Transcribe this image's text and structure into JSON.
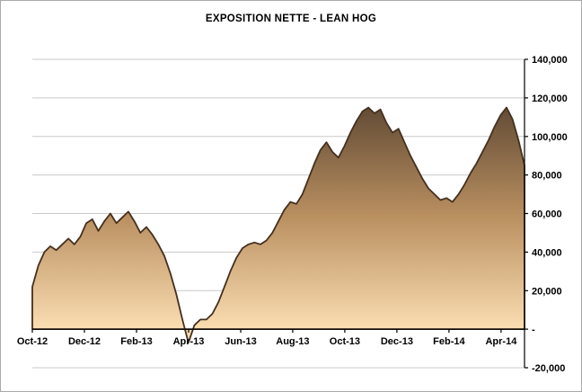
{
  "chart_data": {
    "type": "area",
    "title": "EXPOSITION NETTE - LEAN HOG",
    "series_name": "Exposition nette",
    "x_labels": [
      "Oct-12",
      "Dec-12",
      "Feb-13",
      "Apr-13",
      "Jun-13",
      "Aug-13",
      "Oct-13",
      "Dec-13",
      "Feb-14",
      "Apr-14"
    ],
    "label_step_months": 2,
    "months_total": 18.9,
    "ylim": [
      -20000,
      140000
    ],
    "y_ticks": [
      140000,
      120000,
      100000,
      80000,
      60000,
      40000,
      20000,
      0,
      -20000
    ],
    "y_tick_labels": [
      "140,000",
      "120,000",
      "100,000",
      "80,000",
      "60,000",
      "40,000",
      "20,000",
      "-",
      "-20,000"
    ],
    "grid": true,
    "legend": "none",
    "axis_side": "right",
    "values": [
      22000,
      33000,
      40000,
      43000,
      41000,
      44000,
      47000,
      44000,
      48000,
      55000,
      57000,
      51000,
      56000,
      60000,
      55000,
      58000,
      61000,
      56000,
      50000,
      53000,
      49000,
      44000,
      38000,
      29000,
      18000,
      5000,
      -7000,
      2000,
      5000,
      5000,
      8000,
      14000,
      22000,
      30000,
      37000,
      42000,
      44000,
      45000,
      44000,
      46000,
      50000,
      56000,
      62000,
      66000,
      65000,
      70000,
      78000,
      86000,
      93000,
      97000,
      92000,
      89000,
      95000,
      102000,
      108000,
      113000,
      115000,
      112000,
      114000,
      107000,
      102000,
      104000,
      97000,
      90000,
      84000,
      78000,
      73000,
      70000,
      67000,
      68000,
      66000,
      70000,
      75000,
      81000,
      86000,
      92000,
      98000,
      105000,
      111000,
      115000,
      109000,
      98000,
      85000
    ],
    "colors": {
      "fill_top": "#5e4833",
      "fill_mid": "#b98f60",
      "fill_bottom": "#fbdeb2",
      "outline": "#44301f",
      "gridline": "#c9c9c9",
      "axis": "#000000",
      "background": "#ffffff"
    }
  }
}
